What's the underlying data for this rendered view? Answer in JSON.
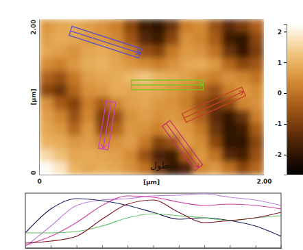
{
  "chart_data": [
    {
      "type": "heatmap",
      "x": [
        0.0625,
        0.1875,
        0.3125,
        0.4375,
        0.5625,
        0.6875,
        0.8125,
        0.9375,
        1.0625,
        1.1875,
        1.3125,
        1.4375,
        1.5625,
        1.6875,
        1.8125,
        1.9375
      ],
      "y": [
        1.9167,
        1.75,
        1.5833,
        1.4167,
        1.25,
        1.0833,
        0.9167,
        0.75,
        0.5833,
        0.4167,
        0.25,
        0.0833
      ],
      "z": [
        [
          0.6,
          0.8,
          0.9,
          0.7,
          0.5,
          0.2,
          -0.8,
          -1.8,
          -2.0,
          -1.2,
          0.2,
          0.4,
          -0.6,
          -1.4,
          -1.0,
          -0.3
        ],
        [
          0.7,
          0.9,
          0.8,
          0.6,
          0.6,
          0.3,
          -0.5,
          -1.5,
          -1.8,
          -0.8,
          0.5,
          0.3,
          -0.4,
          -1.8,
          -2.0,
          -0.8
        ],
        [
          0.8,
          0.7,
          0.5,
          0.8,
          0.9,
          0.7,
          0.2,
          -0.6,
          -0.9,
          0.1,
          0.6,
          0.5,
          0.0,
          -1.2,
          -1.9,
          -1.0
        ],
        [
          0.4,
          0.2,
          0.6,
          0.9,
          1.0,
          0.8,
          0.6,
          0.4,
          0.2,
          0.5,
          0.8,
          0.9,
          0.6,
          -0.2,
          -0.8,
          -0.5
        ],
        [
          -0.3,
          -0.6,
          0.1,
          0.7,
          0.8,
          0.9,
          1.1,
          1.3,
          1.0,
          0.9,
          0.7,
          0.4,
          0.2,
          0.5,
          0.3,
          0.0
        ],
        [
          -0.8,
          -1.2,
          -0.2,
          0.5,
          0.6,
          0.9,
          0.8,
          0.9,
          0.8,
          0.6,
          0.3,
          -0.2,
          -0.6,
          0.2,
          0.6,
          0.4
        ],
        [
          0.5,
          -0.4,
          -0.9,
          0.2,
          -0.4,
          0.3,
          0.7,
          0.8,
          0.6,
          0.5,
          0.2,
          -0.6,
          -1.2,
          -0.8,
          0.3,
          0.5
        ],
        [
          0.7,
          0.3,
          -0.6,
          0.3,
          -1.0,
          -0.6,
          0.5,
          0.7,
          0.5,
          0.6,
          0.4,
          -0.3,
          -1.4,
          -1.9,
          -1.2,
          0.2
        ],
        [
          0.8,
          0.6,
          -0.2,
          0.6,
          -0.8,
          -0.2,
          0.6,
          0.5,
          0.2,
          0.8,
          0.6,
          0.1,
          -1.2,
          -2.0,
          -1.8,
          -0.4
        ],
        [
          1.0,
          0.9,
          0.6,
          0.7,
          0.3,
          0.5,
          0.7,
          0.1,
          -0.9,
          -0.6,
          0.7,
          0.4,
          -0.8,
          -2.0,
          -2.0,
          -0.8
        ],
        [
          1.6,
          1.2,
          0.8,
          0.9,
          0.8,
          0.7,
          0.4,
          -0.6,
          -1.6,
          -1.8,
          -0.4,
          0.6,
          0.0,
          -1.5,
          -1.7,
          -0.6
        ],
        [
          2.2,
          1.8,
          1.0,
          0.8,
          0.9,
          0.8,
          0.5,
          0.0,
          -1.2,
          -2.0,
          -1.6,
          0.3,
          0.6,
          0.0,
          -0.8,
          -0.2
        ]
      ],
      "xlim": [
        0,
        2
      ],
      "ylim": [
        0,
        2
      ],
      "xticks": [
        0,
        {
          "value": 2,
          "label": "2.00"
        }
      ],
      "yticks": [
        0,
        {
          "value": 2,
          "label": "2.00"
        }
      ],
      "xlabel": "[µm]",
      "ylabel": "[µm]",
      "colorbar_lim": [
        -2.65,
        2.25
      ],
      "colorbar_ticks": [
        2,
        1,
        0,
        -1,
        -2
      ],
      "profiles": [
        {
          "color": "#5a50c8",
          "x": [
            0.28,
            0.9
          ],
          "y": [
            1.85,
            1.56
          ]
        },
        {
          "color": "#80c020",
          "x": [
            0.82,
            1.46
          ],
          "y": [
            1.154,
            1.154
          ]
        },
        {
          "color": "#d040c0",
          "x": [
            0.64,
            0.57
          ],
          "y": [
            0.94,
            0.33
          ]
        },
        {
          "color": "#c8402a",
          "x": [
            1.29,
            1.82
          ],
          "y": [
            0.73,
            1.07
          ]
        },
        {
          "color": "#c8306a",
          "x": [
            1.13,
            1.42
          ],
          "y": [
            0.66,
            0.09
          ]
        }
      ],
      "annotations": [
        {
          "text": "طول",
          "x": 1.07,
          "y": 0.08
        }
      ]
    },
    {
      "type": "line",
      "x": [
        0,
        1,
        2,
        3,
        4,
        5,
        6,
        7,
        8,
        9,
        10
      ],
      "series": [
        {
          "color": "#c080e0",
          "values": [
            -1.9,
            -0.4,
            1.1,
            1.5,
            1.6,
            1.8,
            1.85,
            1.95,
            1.7,
            1.5,
            1.1
          ]
        },
        {
          "color": "#d040a0",
          "values": [
            -1.8,
            -1.15,
            -0.15,
            1.1,
            1.8,
            1.7,
            1.35,
            1.1,
            1.2,
            1.1,
            0.85
          ]
        },
        {
          "color": "#202060",
          "values": [
            -0.9,
            0.85,
            1.6,
            1.45,
            1.1,
            0.6,
            0.1,
            0.2,
            0.0,
            -0.4,
            -1.15
          ]
        },
        {
          "color": "#60c060",
          "values": [
            -0.9,
            -0.9,
            -0.8,
            -0.4,
            0.2,
            0.5,
            0.35,
            0.2,
            0.0,
            0.2,
            0.35
          ]
        },
        {
          "color": "#801020",
          "values": [
            -1.65,
            -1.5,
            -1.15,
            0.1,
            1.2,
            1.5,
            0.6,
            -0.15,
            0.0,
            0.2,
            0.6
          ]
        }
      ],
      "xlim": [
        0,
        10
      ],
      "ylim": [
        -2,
        2
      ],
      "xticks": [
        0,
        1,
        2,
        3,
        4,
        5,
        6,
        7,
        8,
        9,
        10
      ],
      "tick_labels": false
    }
  ]
}
